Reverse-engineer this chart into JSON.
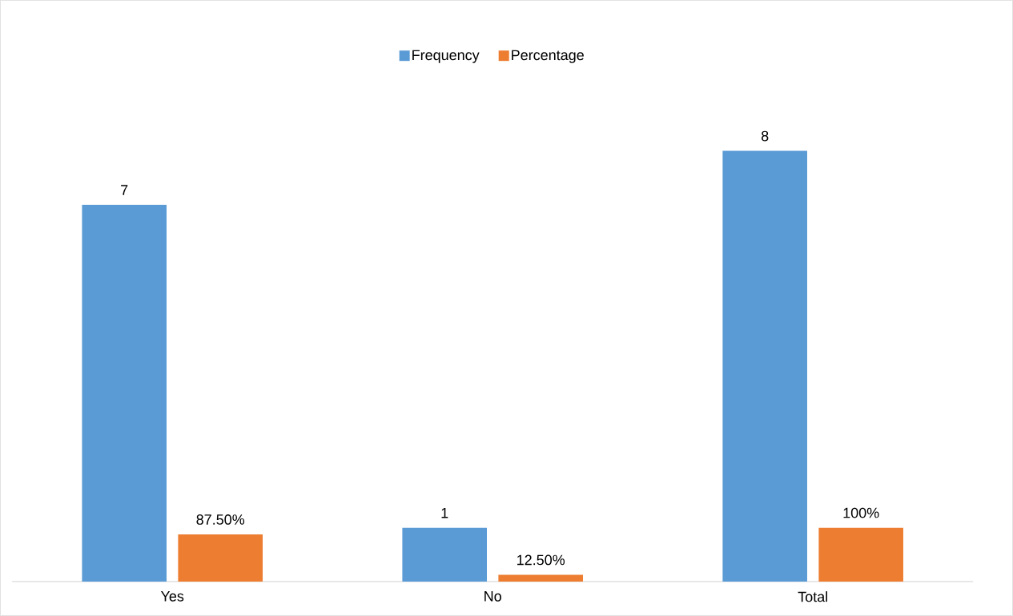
{
  "chart_data": {
    "type": "bar",
    "categories": [
      "Yes",
      "No",
      "Total"
    ],
    "series": [
      {
        "name": "Frequency",
        "color": "#5b9bd5",
        "values": [
          7,
          1,
          8
        ],
        "value_labels": [
          "7",
          "1",
          "8"
        ]
      },
      {
        "name": "Percentage",
        "color": "#ed7d31",
        "values": [
          0.875,
          0.125,
          1
        ],
        "value_labels": [
          "87.50%",
          "12.50%",
          "100%"
        ]
      }
    ],
    "legend": "top"
  }
}
